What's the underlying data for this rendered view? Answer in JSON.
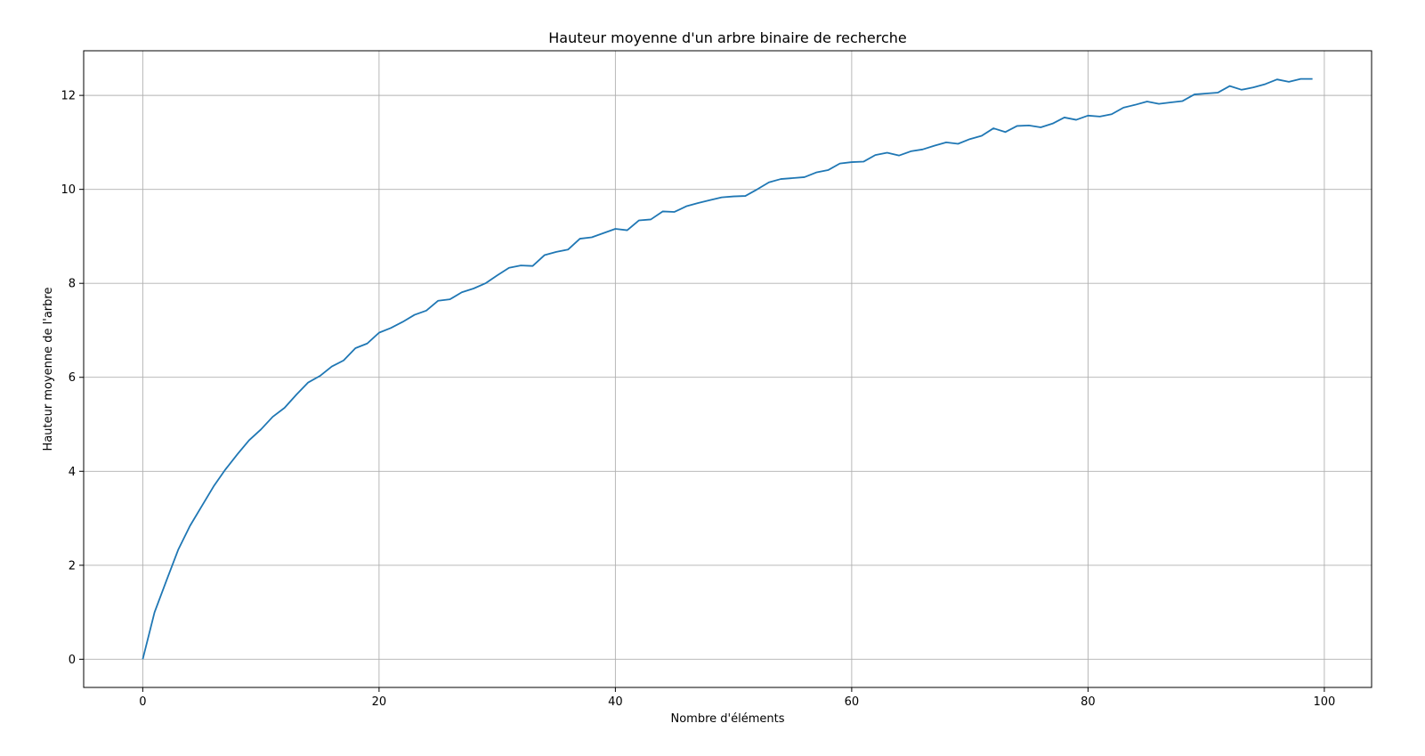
{
  "chart_data": {
    "type": "line",
    "title": "Hauteur moyenne d'un arbre binaire de recherche",
    "xlabel": "Nombre d'éléments",
    "ylabel": "Hauteur moyenne de l'arbre",
    "xlim": [
      -5,
      104
    ],
    "ylim": [
      -0.6,
      12.95
    ],
    "xticks": [
      0,
      20,
      40,
      60,
      80,
      100
    ],
    "yticks": [
      0,
      2,
      4,
      6,
      8,
      10,
      12
    ],
    "grid": true,
    "line_color": "#1f77b4",
    "x": [
      0,
      1,
      2,
      3,
      4,
      5,
      6,
      7,
      8,
      9,
      10,
      11,
      12,
      13,
      14,
      15,
      16,
      17,
      18,
      19,
      20,
      21,
      22,
      23,
      24,
      25,
      26,
      27,
      28,
      29,
      30,
      31,
      32,
      33,
      34,
      35,
      36,
      37,
      38,
      39,
      40,
      41,
      42,
      43,
      44,
      45,
      46,
      47,
      48,
      49,
      50,
      51,
      52,
      53,
      54,
      55,
      56,
      57,
      58,
      59,
      60,
      61,
      62,
      63,
      64,
      65,
      66,
      67,
      68,
      69,
      70,
      71,
      72,
      73,
      74,
      75,
      76,
      77,
      78,
      79,
      80,
      81,
      82,
      83,
      84,
      85,
      86,
      87,
      88,
      89,
      90,
      91,
      92,
      93,
      94,
      95,
      96,
      97,
      98,
      99
    ],
    "y": [
      0,
      1.0,
      1.67,
      2.33,
      2.84,
      3.26,
      3.68,
      4.04,
      4.36,
      4.66,
      4.89,
      5.16,
      5.35,
      5.63,
      5.89,
      6.03,
      6.23,
      6.36,
      6.62,
      6.72,
      6.95,
      7.05,
      7.18,
      7.33,
      7.42,
      7.63,
      7.66,
      7.81,
      7.89,
      8.0,
      8.17,
      8.33,
      8.38,
      8.37,
      8.6,
      8.67,
      8.72,
      8.95,
      8.98,
      9.07,
      9.16,
      9.13,
      9.34,
      9.36,
      9.53,
      9.52,
      9.64,
      9.71,
      9.77,
      9.83,
      9.85,
      9.86,
      10.0,
      10.15,
      10.22,
      10.24,
      10.26,
      10.36,
      10.41,
      10.55,
      10.58,
      10.59,
      10.73,
      10.78,
      10.72,
      10.81,
      10.85,
      10.93,
      11.0,
      10.97,
      11.07,
      11.14,
      11.3,
      11.22,
      11.35,
      11.36,
      11.32,
      11.4,
      11.53,
      11.48,
      11.57,
      11.55,
      11.6,
      11.74,
      11.8,
      11.87,
      11.82,
      11.85,
      11.88,
      12.02,
      12.04,
      12.06,
      12.2,
      12.12,
      12.17,
      12.24,
      12.34,
      12.29,
      12.35,
      12.35
    ]
  }
}
